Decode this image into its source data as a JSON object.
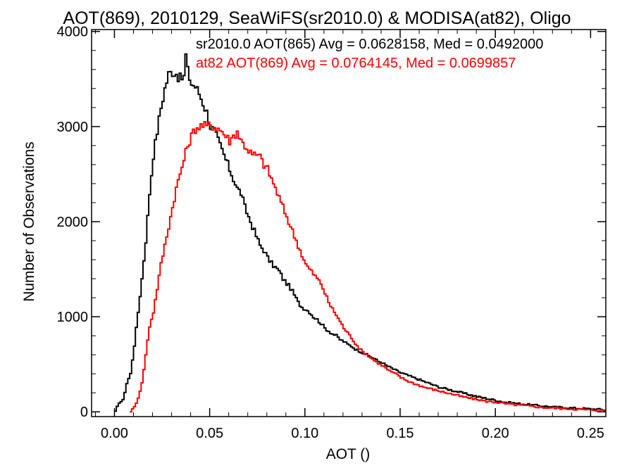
{
  "chart_data": {
    "type": "line",
    "title": "AOT(869), 2010129, SeaWiFS(sr2010.0) & MODISA(at82), Oligo",
    "xlabel": "AOT ()",
    "ylabel": "Number of Observations",
    "xlim": [
      -0.012,
      0.258
    ],
    "ylim": [
      -50,
      4020
    ],
    "x_ticks": [
      0.0,
      0.05,
      0.1,
      0.15,
      0.2,
      0.25
    ],
    "x_tick_labels": [
      "0.00",
      "0.05",
      "0.10",
      "0.15",
      "0.20",
      "0.25"
    ],
    "y_ticks": [
      0,
      1000,
      2000,
      3000,
      4000
    ],
    "y_tick_labels": [
      "0",
      "1000",
      "2000",
      "3000",
      "4000"
    ],
    "grid": false,
    "legend_position": "top-right",
    "series": [
      {
        "name": "sr2010.0 AOT(865) Avg = 0.0628158, Med = 0.0492000",
        "color": "#000000",
        "points": [
          [
            0.0,
            0
          ],
          [
            0.001,
            50
          ],
          [
            0.002,
            100
          ],
          [
            0.004,
            120
          ],
          [
            0.006,
            300
          ],
          [
            0.008,
            400
          ],
          [
            0.01,
            700
          ],
          [
            0.012,
            1050
          ],
          [
            0.014,
            1400
          ],
          [
            0.016,
            1800
          ],
          [
            0.018,
            2300
          ],
          [
            0.02,
            2700
          ],
          [
            0.022,
            2950
          ],
          [
            0.024,
            3200
          ],
          [
            0.026,
            3400
          ],
          [
            0.028,
            3550
          ],
          [
            0.03,
            3580
          ],
          [
            0.032,
            3560
          ],
          [
            0.034,
            3500
          ],
          [
            0.036,
            3520
          ],
          [
            0.037,
            3750
          ],
          [
            0.038,
            3580
          ],
          [
            0.04,
            3450
          ],
          [
            0.042,
            3420
          ],
          [
            0.044,
            3350
          ],
          [
            0.046,
            3250
          ],
          [
            0.048,
            3150
          ],
          [
            0.05,
            3000
          ],
          [
            0.052,
            2950
          ],
          [
            0.054,
            2850
          ],
          [
            0.056,
            2750
          ],
          [
            0.058,
            2650
          ],
          [
            0.06,
            2550
          ],
          [
            0.062,
            2450
          ],
          [
            0.064,
            2350
          ],
          [
            0.066,
            2300
          ],
          [
            0.068,
            2150
          ],
          [
            0.07,
            2050
          ],
          [
            0.072,
            1950
          ],
          [
            0.074,
            1850
          ],
          [
            0.076,
            1750
          ],
          [
            0.078,
            1700
          ],
          [
            0.08,
            1620
          ],
          [
            0.082,
            1560
          ],
          [
            0.084,
            1520
          ],
          [
            0.086,
            1480
          ],
          [
            0.088,
            1400
          ],
          [
            0.09,
            1350
          ],
          [
            0.092,
            1300
          ],
          [
            0.094,
            1230
          ],
          [
            0.096,
            1150
          ],
          [
            0.098,
            1100
          ],
          [
            0.1,
            1080
          ],
          [
            0.102,
            1050
          ],
          [
            0.104,
            1000
          ],
          [
            0.106,
            970
          ],
          [
            0.108,
            930
          ],
          [
            0.11,
            880
          ],
          [
            0.112,
            850
          ],
          [
            0.114,
            820
          ],
          [
            0.116,
            800
          ],
          [
            0.118,
            760
          ],
          [
            0.12,
            740
          ],
          [
            0.122,
            710
          ],
          [
            0.124,
            690
          ],
          [
            0.126,
            660
          ],
          [
            0.128,
            640
          ],
          [
            0.13,
            620
          ],
          [
            0.132,
            600
          ],
          [
            0.134,
            580
          ],
          [
            0.136,
            560
          ],
          [
            0.138,
            530
          ],
          [
            0.14,
            520
          ],
          [
            0.142,
            490
          ],
          [
            0.144,
            470
          ],
          [
            0.146,
            450
          ],
          [
            0.148,
            430
          ],
          [
            0.15,
            410
          ],
          [
            0.154,
            380
          ],
          [
            0.158,
            350
          ],
          [
            0.162,
            320
          ],
          [
            0.166,
            290
          ],
          [
            0.17,
            260
          ],
          [
            0.174,
            240
          ],
          [
            0.178,
            220
          ],
          [
            0.182,
            200
          ],
          [
            0.186,
            180
          ],
          [
            0.19,
            160
          ],
          [
            0.195,
            140
          ],
          [
            0.2,
            120
          ],
          [
            0.205,
            100
          ],
          [
            0.21,
            90
          ],
          [
            0.215,
            80
          ],
          [
            0.22,
            70
          ],
          [
            0.225,
            60
          ],
          [
            0.23,
            50
          ],
          [
            0.235,
            45
          ],
          [
            0.24,
            40
          ],
          [
            0.245,
            35
          ],
          [
            0.25,
            30
          ],
          [
            0.255,
            25
          ],
          [
            0.258,
            20
          ]
        ]
      },
      {
        "name": "at82 AOT(869) Avg = 0.0764145, Med = 0.0699857",
        "color": "#ff0000",
        "points": [
          [
            0.008,
            0
          ],
          [
            0.01,
            50
          ],
          [
            0.012,
            150
          ],
          [
            0.014,
            300
          ],
          [
            0.016,
            600
          ],
          [
            0.018,
            900
          ],
          [
            0.02,
            1050
          ],
          [
            0.022,
            1300
          ],
          [
            0.024,
            1550
          ],
          [
            0.026,
            1750
          ],
          [
            0.028,
            1950
          ],
          [
            0.03,
            2150
          ],
          [
            0.032,
            2350
          ],
          [
            0.034,
            2500
          ],
          [
            0.036,
            2650
          ],
          [
            0.038,
            2800
          ],
          [
            0.04,
            2900
          ],
          [
            0.042,
            2980
          ],
          [
            0.044,
            3000
          ],
          [
            0.046,
            3010
          ],
          [
            0.048,
            3000
          ],
          [
            0.05,
            3020
          ],
          [
            0.052,
            3000
          ],
          [
            0.054,
            2980
          ],
          [
            0.056,
            2950
          ],
          [
            0.058,
            2900
          ],
          [
            0.06,
            2850
          ],
          [
            0.062,
            2900
          ],
          [
            0.064,
            2950
          ],
          [
            0.066,
            2850
          ],
          [
            0.068,
            2800
          ],
          [
            0.07,
            2750
          ],
          [
            0.072,
            2700
          ],
          [
            0.074,
            2700
          ],
          [
            0.076,
            2680
          ],
          [
            0.078,
            2600
          ],
          [
            0.08,
            2550
          ],
          [
            0.082,
            2450
          ],
          [
            0.084,
            2350
          ],
          [
            0.086,
            2250
          ],
          [
            0.088,
            2150
          ],
          [
            0.09,
            2050
          ],
          [
            0.092,
            1950
          ],
          [
            0.094,
            1850
          ],
          [
            0.096,
            1750
          ],
          [
            0.098,
            1650
          ],
          [
            0.1,
            1550
          ],
          [
            0.102,
            1500
          ],
          [
            0.104,
            1450
          ],
          [
            0.106,
            1400
          ],
          [
            0.108,
            1350
          ],
          [
            0.11,
            1250
          ],
          [
            0.112,
            1150
          ],
          [
            0.114,
            1080
          ],
          [
            0.116,
            1020
          ],
          [
            0.118,
            950
          ],
          [
            0.12,
            880
          ],
          [
            0.122,
            830
          ],
          [
            0.124,
            780
          ],
          [
            0.126,
            720
          ],
          [
            0.128,
            670
          ],
          [
            0.13,
            630
          ],
          [
            0.132,
            600
          ],
          [
            0.134,
            570
          ],
          [
            0.136,
            540
          ],
          [
            0.138,
            510
          ],
          [
            0.14,
            490
          ],
          [
            0.142,
            460
          ],
          [
            0.144,
            430
          ],
          [
            0.146,
            410
          ],
          [
            0.148,
            390
          ],
          [
            0.15,
            360
          ],
          [
            0.154,
            320
          ],
          [
            0.158,
            290
          ],
          [
            0.162,
            260
          ],
          [
            0.166,
            240
          ],
          [
            0.17,
            220
          ],
          [
            0.174,
            200
          ],
          [
            0.178,
            180
          ],
          [
            0.182,
            160
          ],
          [
            0.186,
            145
          ],
          [
            0.19,
            130
          ],
          [
            0.195,
            110
          ],
          [
            0.2,
            100
          ],
          [
            0.205,
            85
          ],
          [
            0.21,
            75
          ],
          [
            0.215,
            65
          ],
          [
            0.22,
            55
          ],
          [
            0.225,
            45
          ],
          [
            0.23,
            40
          ],
          [
            0.235,
            35
          ],
          [
            0.24,
            30
          ],
          [
            0.245,
            25
          ],
          [
            0.25,
            20
          ],
          [
            0.255,
            15
          ],
          [
            0.258,
            12
          ]
        ]
      }
    ]
  }
}
